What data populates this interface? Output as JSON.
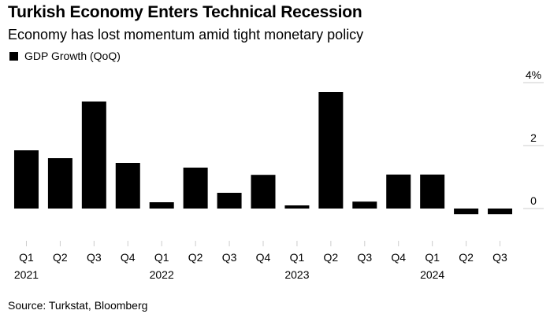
{
  "chart_data": {
    "type": "bar",
    "title": "Turkish Economy Enters Technical Recession",
    "subtitle": "Economy has lost momentum amid tight monetary policy",
    "legend": [
      "GDP Growth (QoQ)"
    ],
    "series": [
      {
        "name": "GDP Growth (QoQ)",
        "values": [
          1.85,
          1.6,
          3.4,
          1.45,
          0.2,
          1.3,
          0.5,
          1.07,
          0.1,
          3.7,
          0.22,
          1.08,
          1.08,
          -0.18,
          -0.18
        ]
      }
    ],
    "categories": [
      "Q1",
      "Q2",
      "Q3",
      "Q4",
      "Q1",
      "Q2",
      "Q3",
      "Q4",
      "Q1",
      "Q2",
      "Q3",
      "Q4",
      "Q1",
      "Q2",
      "Q3"
    ],
    "year_labels": [
      {
        "label": "2021",
        "index": 0
      },
      {
        "label": "2022",
        "index": 4
      },
      {
        "label": "2023",
        "index": 8
      },
      {
        "label": "2024",
        "index": 12
      }
    ],
    "ylim": [
      -0.9,
      4.0
    ],
    "yticks": [
      {
        "value": 4,
        "label": "4%"
      },
      {
        "value": 2,
        "label": "2"
      },
      {
        "value": 0,
        "label": "0"
      }
    ],
    "y_axis_position": "right",
    "grid": false,
    "xlabel": "",
    "ylabel": "",
    "bar_color": "#000000",
    "tick_color": "#cccccc",
    "source": "Source: Turkstat, Bloomberg"
  }
}
